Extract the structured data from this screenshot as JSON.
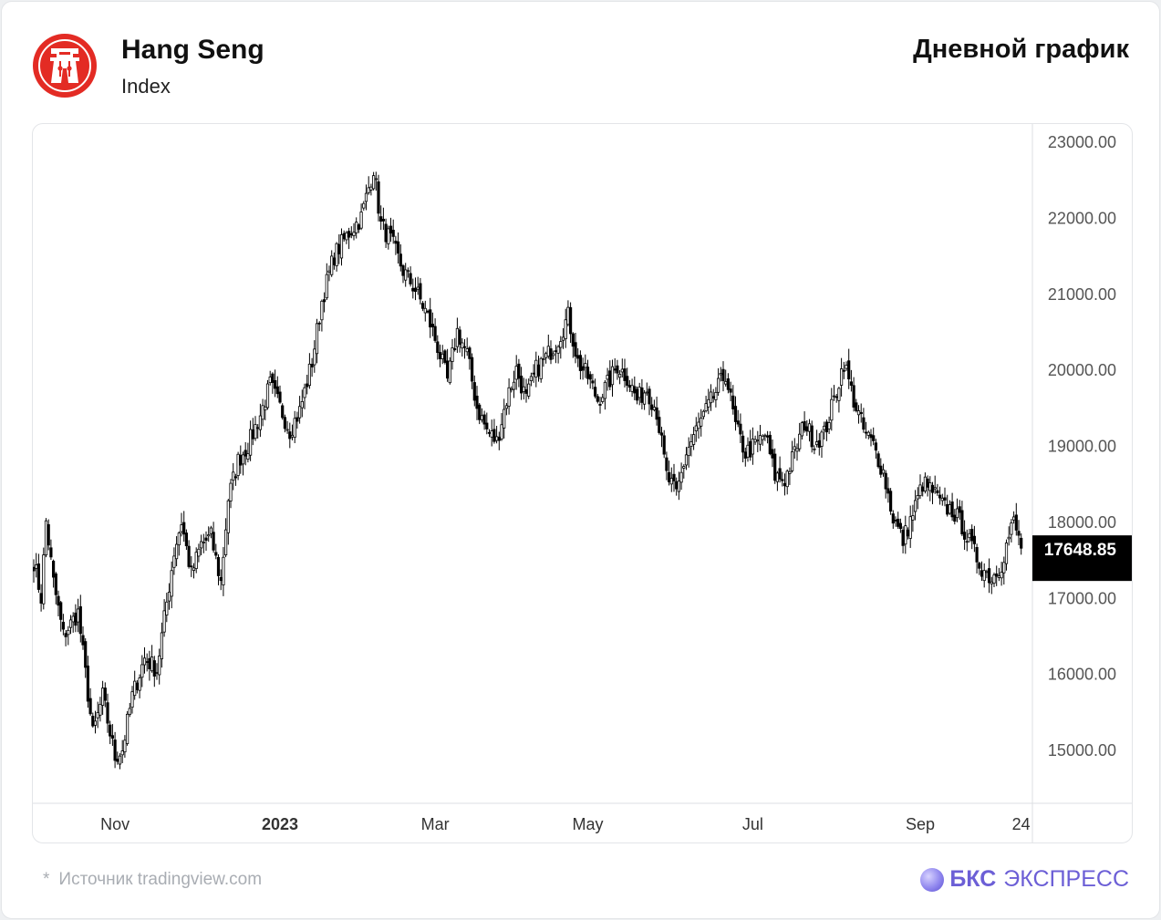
{
  "header": {
    "title": "Hang Seng",
    "subtitle": "Index",
    "chart_kind": "Дневной график"
  },
  "footer": {
    "asterisk": "*",
    "source": "Источник tradingview.com",
    "brand_strong": "БКС",
    "brand_rest": "ЭКСПРЕСС"
  },
  "colors": {
    "logo_red": "#e32b24",
    "candle": "#000000",
    "price_label_bg": "#000000",
    "brand": "#6c5fd6"
  },
  "chart_data": {
    "type": "candlestick",
    "ylim": [
      14300,
      23200
    ],
    "yticks": [
      23000,
      22000,
      21000,
      20000,
      19000,
      18000,
      17000,
      16000,
      15000
    ],
    "ytick_labels": [
      "23000.00",
      "22000.00",
      "21000.00",
      "20000.00",
      "19000.00",
      "18000.00",
      "17000.00",
      "16000.00",
      "15000.00"
    ],
    "xtick_labels": [
      "Nov",
      "2023",
      "Mar",
      "May",
      "Jul",
      "Sep",
      "24"
    ],
    "last_price_label": "17648.85",
    "last_price": 17648.85,
    "close_anchors": [
      [
        0,
        17480
      ],
      [
        3,
        17000
      ],
      [
        5,
        18000
      ],
      [
        8,
        17200
      ],
      [
        12,
        16500
      ],
      [
        18,
        16800
      ],
      [
        24,
        15200
      ],
      [
        28,
        15700
      ],
      [
        33,
        14900
      ],
      [
        36,
        15000
      ],
      [
        40,
        15700
      ],
      [
        45,
        16200
      ],
      [
        50,
        16050
      ],
      [
        57,
        17600
      ],
      [
        60,
        18000
      ],
      [
        64,
        17300
      ],
      [
        68,
        17700
      ],
      [
        72,
        17800
      ],
      [
        76,
        17200
      ],
      [
        79,
        18300
      ],
      [
        83,
        18800
      ],
      [
        87,
        19000
      ],
      [
        92,
        19400
      ],
      [
        96,
        19800
      ],
      [
        100,
        19500
      ],
      [
        104,
        19200
      ],
      [
        108,
        19450
      ],
      [
        113,
        20100
      ],
      [
        117,
        20900
      ],
      [
        122,
        21500
      ],
      [
        128,
        21800
      ],
      [
        133,
        22000
      ],
      [
        138,
        22650
      ],
      [
        141,
        21900
      ],
      [
        145,
        21700
      ],
      [
        150,
        21300
      ],
      [
        155,
        21050
      ],
      [
        160,
        20700
      ],
      [
        164,
        20300
      ],
      [
        168,
        19850
      ],
      [
        172,
        20500
      ],
      [
        176,
        20200
      ],
      [
        180,
        19500
      ],
      [
        184,
        19200
      ],
      [
        188,
        19050
      ],
      [
        192,
        19600
      ],
      [
        196,
        20000
      ],
      [
        200,
        19600
      ],
      [
        204,
        20000
      ],
      [
        208,
        20150
      ],
      [
        213,
        20400
      ],
      [
        217,
        20700
      ],
      [
        221,
        20100
      ],
      [
        225,
        19900
      ],
      [
        229,
        19600
      ],
      [
        233,
        19800
      ],
      [
        237,
        20050
      ],
      [
        241,
        19900
      ],
      [
        245,
        19600
      ],
      [
        249,
        19750
      ],
      [
        253,
        19450
      ],
      [
        257,
        18600
      ],
      [
        261,
        18350
      ],
      [
        265,
        18900
      ],
      [
        269,
        19200
      ],
      [
        273,
        19450
      ],
      [
        277,
        19700
      ],
      [
        281,
        19950
      ],
      [
        285,
        19250
      ],
      [
        289,
        18900
      ],
      [
        293,
        19000
      ],
      [
        297,
        19150
      ],
      [
        301,
        18600
      ],
      [
        305,
        18550
      ],
      [
        309,
        18900
      ],
      [
        313,
        19300
      ],
      [
        317,
        19050
      ],
      [
        321,
        19150
      ],
      [
        325,
        19600
      ],
      [
        329,
        20100
      ],
      [
        333,
        19600
      ],
      [
        337,
        19200
      ],
      [
        341,
        19000
      ],
      [
        345,
        18650
      ],
      [
        349,
        18050
      ],
      [
        353,
        17750
      ],
      [
        357,
        18100
      ],
      [
        361,
        18500
      ],
      [
        365,
        18400
      ],
      [
        369,
        18200
      ],
      [
        373,
        18150
      ],
      [
        377,
        17950
      ],
      [
        381,
        17650
      ],
      [
        385,
        17400
      ],
      [
        389,
        17250
      ],
      [
        393,
        17450
      ],
      [
        396,
        17800
      ],
      [
        398,
        18000
      ],
      [
        401,
        17648
      ]
    ],
    "xtick_positions": [
      33,
      100,
      163,
      225,
      292,
      360,
      401
    ]
  }
}
